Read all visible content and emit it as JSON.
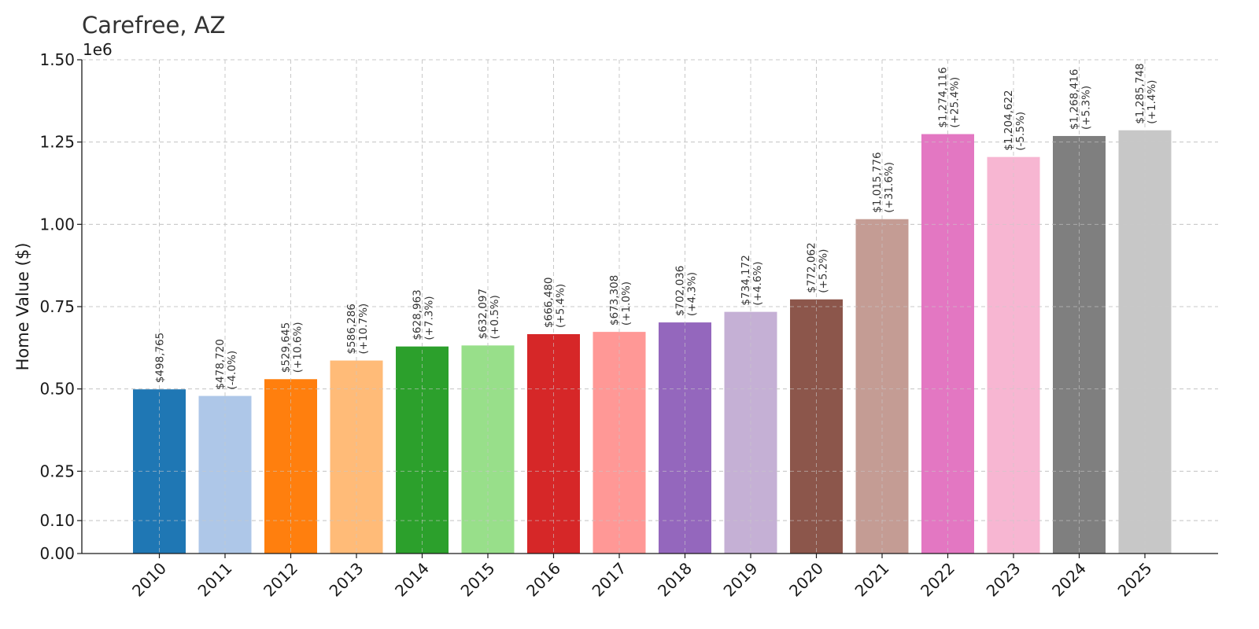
{
  "chart_data": {
    "type": "bar",
    "title": "Carefree, AZ",
    "ylabel": "Home Value ($)",
    "xlabel": "",
    "y_offset_label": "1e6",
    "ylim": [
      0,
      1500000
    ],
    "yticks": [
      0,
      100000,
      250000,
      500000,
      750000,
      1000000,
      1250000,
      1500000
    ],
    "ytick_labels": [
      "0.00",
      "0.10",
      "0.25",
      "0.50",
      "0.75",
      "1.00",
      "1.25",
      "1.50"
    ],
    "grid": true,
    "categories": [
      "2010",
      "2011",
      "2012",
      "2013",
      "2014",
      "2015",
      "2016",
      "2017",
      "2018",
      "2019",
      "2020",
      "2021",
      "2022",
      "2023",
      "2024",
      "2025"
    ],
    "values": [
      498765,
      478720,
      529645,
      586286,
      628963,
      632097,
      666480,
      673308,
      702036,
      734172,
      772062,
      1015776,
      1274116,
      1204622,
      1268416,
      1285748
    ],
    "value_labels": [
      "$498,765",
      "$478,720",
      "$529,645",
      "$586,286",
      "$628,963",
      "$632,097",
      "$666,480",
      "$673,308",
      "$702,036",
      "$734,172",
      "$772,062",
      "$1,015,776",
      "$1,274,116",
      "$1,204,622",
      "$1,268,416",
      "$1,285,748"
    ],
    "change_labels": [
      "",
      "(-4.0%)",
      "(+10.6%)",
      "(+10.7%)",
      "(+7.3%)",
      "(+0.5%)",
      "(+5.4%)",
      "(+1.0%)",
      "(+4.3%)",
      "(+4.6%)",
      "(+5.2%)",
      "(+31.6%)",
      "(+25.4%)",
      "(-5.5%)",
      "(+5.3%)",
      "(+1.4%)"
    ],
    "colors": [
      "#1f77b4",
      "#aec7e8",
      "#ff7f0e",
      "#ffbb78",
      "#2ca02c",
      "#98df8a",
      "#d62728",
      "#ff9896",
      "#9467bd",
      "#c5b0d5",
      "#8c564b",
      "#c49c94",
      "#e377c2",
      "#f7b6d2",
      "#7f7f7f",
      "#c7c7c7"
    ]
  }
}
